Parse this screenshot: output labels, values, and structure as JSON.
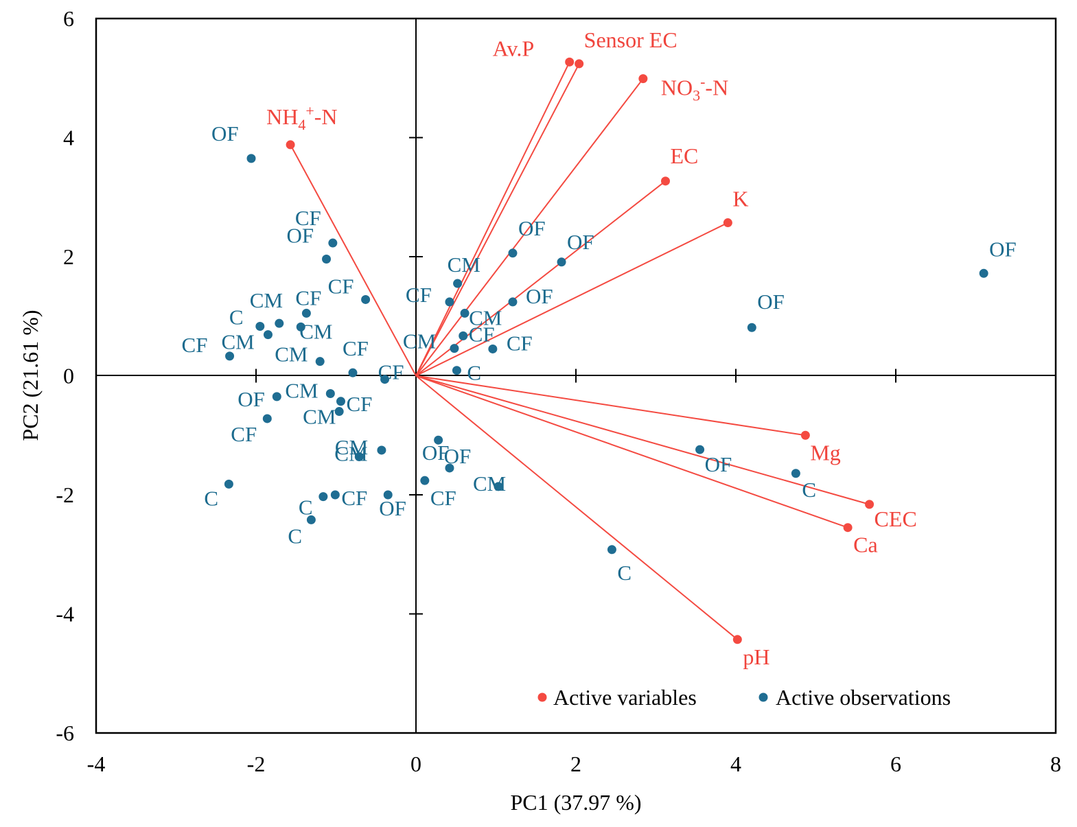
{
  "colors": {
    "variables": "#f44a41",
    "observations": "#1f6d92",
    "axis": "#000000"
  },
  "chart_data": {
    "type": "scatter",
    "subtype": "pca-biplot",
    "title": "",
    "xlabel": "PC1 (37.97 %)",
    "ylabel": "PC2 (21.61 %)",
    "xlim": [
      -4,
      8
    ],
    "ylim": [
      -6,
      6
    ],
    "xticks": [
      "-4",
      "-2",
      "0",
      "2",
      "4",
      "6",
      "8"
    ],
    "yticks": [
      "6",
      "4",
      "2",
      "0",
      "-2",
      "-4",
      "-6"
    ],
    "grid": false,
    "legend": {
      "position": "bottom-right",
      "entries": [
        {
          "name": "Active variables",
          "series": "variables"
        },
        {
          "name": "Active observations",
          "series": "observations"
        }
      ]
    },
    "variables": [
      {
        "name": "NH4+-N",
        "base": "NH",
        "sub": "4",
        "sup": "+",
        "suffix": "-N",
        "x": -1.57,
        "y": 3.88
      },
      {
        "name": "Av.P",
        "x": 1.92,
        "y": 5.27
      },
      {
        "name": "Sensor EC",
        "x": 2.04,
        "y": 5.24
      },
      {
        "name": "NO3--N",
        "base": "NO",
        "sub": "3",
        "sup": "-",
        "suffix": "-N",
        "x": 2.84,
        "y": 4.99
      },
      {
        "name": "EC",
        "x": 3.12,
        "y": 3.27
      },
      {
        "name": "K",
        "x": 3.9,
        "y": 2.57
      },
      {
        "name": "Mg",
        "x": 4.87,
        "y": -1.0
      },
      {
        "name": "CEC",
        "x": 5.67,
        "y": -2.16
      },
      {
        "name": "Ca",
        "x": 5.4,
        "y": -2.55
      },
      {
        "name": "pH",
        "x": 4.02,
        "y": -4.43
      }
    ],
    "observations": [
      {
        "label": "OF",
        "x": -2.06,
        "y": 3.65
      },
      {
        "label": "CF",
        "x": -1.04,
        "y": 2.23
      },
      {
        "label": "OF",
        "x": -1.12,
        "y": 1.96
      },
      {
        "label": "CF",
        "x": -0.63,
        "y": 1.28
      },
      {
        "label": "CF",
        "x": -1.37,
        "y": 1.05
      },
      {
        "label": "C",
        "x": -1.95,
        "y": 0.83
      },
      {
        "label": "CM",
        "x": -1.71,
        "y": 0.88
      },
      {
        "label": "CM",
        "x": -1.85,
        "y": 0.69
      },
      {
        "label": "CM",
        "x": -1.44,
        "y": 0.82
      },
      {
        "label": "CF",
        "x": -2.33,
        "y": 0.33
      },
      {
        "label": "CM",
        "x": -1.2,
        "y": 0.24
      },
      {
        "label": "CF",
        "x": -0.79,
        "y": 0.05
      },
      {
        "label": "CF",
        "x": -0.39,
        "y": -0.06
      },
      {
        "label": "OF",
        "x": -1.74,
        "y": -0.35
      },
      {
        "label": "CM",
        "x": -1.07,
        "y": -0.3
      },
      {
        "label": "CF",
        "x": -0.94,
        "y": -0.43
      },
      {
        "label": "CF",
        "x": -1.86,
        "y": -0.72
      },
      {
        "label": "CM",
        "x": -0.96,
        "y": -0.6
      },
      {
        "label": "CM",
        "x": -0.43,
        "y": -1.25
      },
      {
        "label": "CM",
        "x": -0.71,
        "y": -1.36
      },
      {
        "label": "C",
        "x": -2.34,
        "y": -1.82
      },
      {
        "label": "C",
        "x": -1.16,
        "y": -2.03
      },
      {
        "label": "CF",
        "x": -1.01,
        "y": -2.0
      },
      {
        "label": "OF",
        "x": -0.35,
        "y": -2.0
      },
      {
        "label": "C",
        "x": -1.31,
        "y": -2.42
      },
      {
        "label": "OF",
        "x": 1.21,
        "y": 2.06
      },
      {
        "label": "OF",
        "x": 1.82,
        "y": 1.91
      },
      {
        "label": "CM",
        "x": 0.52,
        "y": 1.55
      },
      {
        "label": "CF",
        "x": 0.42,
        "y": 1.24
      },
      {
        "label": "CM",
        "x": 0.61,
        "y": 1.05
      },
      {
        "label": "OF",
        "x": 1.21,
        "y": 1.24
      },
      {
        "label": "CF",
        "x": 0.59,
        "y": 0.67
      },
      {
        "label": "CM",
        "x": 0.48,
        "y": 0.46
      },
      {
        "label": "CF",
        "x": 0.96,
        "y": 0.45
      },
      {
        "label": "C",
        "x": 0.51,
        "y": 0.09
      },
      {
        "label": "OF",
        "x": 0.28,
        "y": -1.08
      },
      {
        "label": "OF",
        "x": 0.42,
        "y": -1.55
      },
      {
        "label": "CF",
        "x": 0.11,
        "y": -1.76
      },
      {
        "label": "CM",
        "x": 1.03,
        "y": -1.86
      },
      {
        "label": "C",
        "x": 2.45,
        "y": -2.92
      },
      {
        "label": "OF",
        "x": 3.55,
        "y": -1.24
      },
      {
        "label": "C",
        "x": 4.75,
        "y": -1.64
      },
      {
        "label": "OF",
        "x": 4.2,
        "y": 0.81
      },
      {
        "label": "OF",
        "x": 7.1,
        "y": 1.72
      }
    ]
  }
}
